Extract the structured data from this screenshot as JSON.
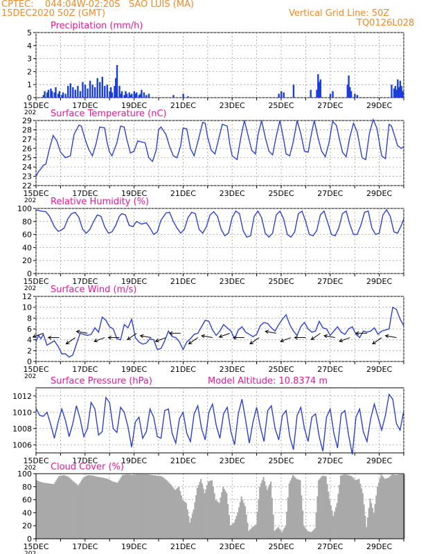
{
  "header": {
    "line1": "CPTEC:    044:04W-02:20S   SAO LUIS (MA)",
    "line2": "15DEC2020 50Z (GMT)",
    "grid_note": "Vertical Grid Line: 50Z",
    "code": "TQ0126L028"
  },
  "colors": {
    "header": "#f08a24",
    "title": "#e8169a",
    "line": "#2b3fd6",
    "bar": "#1a3fd8",
    "cloud": "#a9a9a9",
    "grid": "#9a9a9a"
  },
  "x_axis": {
    "unit": "days since 15DEC",
    "range": [
      0,
      15
    ],
    "tick_labels": [
      "15DEC",
      "17DEC",
      "19DEC",
      "21DEC",
      "23DEC",
      "25DEC",
      "27DEC",
      "29DEC"
    ],
    "tick_positions": [
      0,
      2,
      4,
      6,
      8,
      10,
      12,
      14
    ],
    "year_stub": "202"
  },
  "chart_data": [
    {
      "type": "bar",
      "title": "Precipitation (mm/h)",
      "ylim": [
        0,
        5
      ],
      "yticks": [
        0,
        1,
        2,
        3,
        4,
        5
      ],
      "grid": true,
      "x": [
        0.3,
        0.35,
        0.45,
        0.5,
        0.6,
        0.65,
        0.75,
        0.8,
        0.9,
        0.95,
        1.05,
        1.1,
        1.2,
        1.3,
        1.4,
        1.5,
        1.6,
        1.7,
        1.8,
        1.9,
        2.0,
        2.1,
        2.2,
        2.3,
        2.4,
        2.5,
        2.6,
        2.7,
        2.8,
        2.9,
        3.0,
        3.05,
        3.1,
        3.2,
        3.25,
        3.3,
        3.4,
        3.45,
        3.5,
        3.6,
        3.65,
        3.7,
        3.8,
        3.85,
        3.9,
        4.0,
        4.05,
        4.1,
        4.2,
        4.25,
        4.3,
        4.4,
        4.5,
        4.6,
        5.6,
        6.0,
        6.2,
        9.9,
        10.0,
        10.1,
        10.5,
        11.2,
        11.45,
        11.5,
        11.55,
        11.6,
        12.0,
        12.1,
        12.7,
        12.75,
        12.8,
        12.85,
        13.0,
        13.1,
        14.5,
        14.6,
        14.65,
        14.7,
        14.75,
        14.8,
        14.85,
        14.9,
        14.95
      ],
      "values": [
        0.2,
        0.5,
        0.4,
        0.6,
        0.7,
        0.5,
        0.4,
        0.8,
        0.3,
        0.5,
        0.2,
        0.4,
        0.3,
        0.9,
        1.1,
        0.8,
        0.6,
        0.9,
        0.5,
        1.2,
        1.0,
        0.7,
        1.3,
        1.0,
        0.8,
        1.5,
        1.2,
        1.6,
        0.9,
        1.0,
        0.5,
        0.8,
        0.4,
        0.9,
        1.5,
        2.5,
        0.9,
        0.3,
        0.5,
        0.2,
        0.5,
        0.3,
        0.4,
        0.2,
        0.3,
        0.5,
        0.3,
        0.4,
        0.2,
        0.3,
        0.6,
        0.4,
        0.2,
        0.3,
        0.2,
        0.3,
        0.1,
        0.3,
        0.5,
        0.4,
        1.0,
        0.6,
        0.6,
        1.8,
        1.2,
        1.4,
        0.3,
        0.5,
        1.0,
        1.7,
        0.8,
        0.5,
        0.3,
        0.2,
        1.0,
        0.7,
        0.9,
        0.6,
        1.4,
        0.8,
        1.3,
        0.9,
        0.5
      ]
    },
    {
      "type": "line",
      "title": "Surface Temperature (nC)",
      "ylim": [
        22,
        29
      ],
      "yticks": [
        22,
        23,
        24,
        25,
        26,
        27,
        28,
        29
      ],
      "grid": true,
      "x": [
        0,
        0.1,
        0.2,
        0.3,
        0.4,
        0.55,
        0.7,
        0.85,
        1.0,
        1.2,
        1.4,
        1.55,
        1.75,
        1.85,
        2.0,
        2.15,
        2.3,
        2.45,
        2.6,
        2.8,
        2.9,
        3.0,
        3.1,
        3.3,
        3.45,
        3.6,
        3.7,
        3.85,
        4.0,
        4.15,
        4.3,
        4.45,
        4.6,
        4.75,
        4.9,
        5.0,
        5.1,
        5.3,
        5.45,
        5.6,
        5.75,
        5.9,
        6.0,
        6.15,
        6.3,
        6.45,
        6.6,
        6.8,
        6.9,
        7.0,
        7.15,
        7.3,
        7.45,
        7.6,
        7.8,
        7.9,
        8.0,
        8.2,
        8.35,
        8.5,
        8.65,
        8.8,
        8.95,
        9.05,
        9.2,
        9.35,
        9.5,
        9.65,
        9.8,
        9.95,
        10.1,
        10.2,
        10.35,
        10.5,
        10.65,
        10.8,
        10.95,
        11.1,
        11.25,
        11.35,
        11.5,
        11.65,
        11.8,
        11.95,
        12.1,
        12.25,
        12.35,
        12.5,
        12.65,
        12.8,
        12.95,
        13.1,
        13.3,
        13.45,
        13.6,
        13.75,
        13.9,
        14.1,
        14.25,
        14.4,
        14.5,
        14.6,
        14.75,
        14.9,
        15.0
      ],
      "values": [
        23.0,
        23.5,
        23.8,
        24.2,
        24.3,
        26.0,
        27.4,
        26.8,
        25.6,
        25.0,
        25.2,
        27.5,
        28.5,
        28.4,
        27.0,
        25.9,
        25.2,
        26.5,
        28.3,
        28.2,
        26.6,
        25.6,
        25.2,
        26.6,
        28.4,
        28.3,
        27.0,
        25.5,
        25.7,
        26.8,
        26.7,
        26.6,
        25.0,
        24.6,
        25.8,
        28.0,
        28.3,
        27.5,
        26.2,
        25.2,
        25.0,
        26.3,
        28.2,
        28.1,
        26.0,
        25.2,
        26.7,
        28.8,
        28.7,
        27.2,
        25.8,
        25.4,
        27.0,
        28.6,
        28.4,
        26.5,
        25.2,
        24.8,
        27.1,
        29.0,
        27.4,
        25.8,
        25.4,
        27.4,
        29.0,
        27.2,
        25.7,
        25.3,
        27.3,
        29.0,
        27.0,
        25.4,
        25.2,
        26.8,
        29.0,
        27.6,
        25.7,
        25.6,
        27.8,
        29.0,
        27.2,
        25.7,
        25.1,
        26.6,
        28.9,
        28.5,
        27.3,
        25.6,
        25.1,
        27.2,
        28.7,
        27.8,
        25.0,
        24.8,
        27.6,
        29.1,
        28.2,
        25.2,
        24.9,
        28.6,
        28.4,
        27.6,
        26.3,
        26.0,
        26.2
      ]
    },
    {
      "type": "line",
      "title": "Relative Humidity (%)",
      "ylim": [
        0,
        100
      ],
      "yticks": [
        0,
        20,
        40,
        60,
        80,
        100
      ],
      "grid": true,
      "x": [
        0,
        0.2,
        0.4,
        0.55,
        0.75,
        0.9,
        1.0,
        1.15,
        1.3,
        1.45,
        1.6,
        1.75,
        1.9,
        2.05,
        2.2,
        2.35,
        2.5,
        2.65,
        2.8,
        2.95,
        3.1,
        3.25,
        3.4,
        3.5,
        3.65,
        3.8,
        3.95,
        4.1,
        4.3,
        4.5,
        4.65,
        4.8,
        4.95,
        5.1,
        5.3,
        5.45,
        5.6,
        5.75,
        5.9,
        6.05,
        6.2,
        6.35,
        6.5,
        6.65,
        6.8,
        6.95,
        7.1,
        7.25,
        7.4,
        7.55,
        7.7,
        7.85,
        8.0,
        8.15,
        8.3,
        8.45,
        8.6,
        8.75,
        8.9,
        9.05,
        9.2,
        9.35,
        9.5,
        9.65,
        9.8,
        9.95,
        10.1,
        10.25,
        10.4,
        10.55,
        10.7,
        10.85,
        11.0,
        11.15,
        11.3,
        11.45,
        11.6,
        11.75,
        11.9,
        12.05,
        12.2,
        12.35,
        12.5,
        12.65,
        12.8,
        12.95,
        13.1,
        13.25,
        13.4,
        13.55,
        13.7,
        13.85,
        14.0,
        14.15,
        14.3,
        14.45,
        14.6,
        14.75,
        14.9,
        15.0
      ],
      "values": [
        98,
        96,
        95,
        88,
        72,
        65,
        66,
        70,
        84,
        92,
        94,
        86,
        68,
        62,
        68,
        80,
        90,
        88,
        72,
        62,
        64,
        74,
        88,
        92,
        90,
        74,
        72,
        80,
        76,
        78,
        70,
        60,
        64,
        82,
        93,
        94,
        80,
        70,
        62,
        68,
        86,
        94,
        92,
        68,
        62,
        72,
        90,
        95,
        88,
        68,
        58,
        62,
        86,
        96,
        92,
        66,
        56,
        58,
        88,
        96,
        86,
        62,
        56,
        62,
        90,
        96,
        84,
        60,
        56,
        64,
        92,
        96,
        80,
        60,
        58,
        66,
        90,
        96,
        78,
        60,
        58,
        70,
        92,
        96,
        76,
        60,
        60,
        74,
        94,
        96,
        70,
        60,
        62,
        90,
        98,
        88,
        64,
        62,
        74,
        84
      ]
    },
    {
      "type": "line",
      "title": "Surface Wind (m/s)",
      "ylim": [
        0,
        12
      ],
      "yticks": [
        0,
        2,
        4,
        6,
        8,
        10,
        12
      ],
      "grid": true,
      "x": [
        0,
        0.1,
        0.2,
        0.3,
        0.45,
        0.6,
        0.75,
        0.9,
        1.05,
        1.2,
        1.35,
        1.5,
        1.65,
        1.8,
        1.95,
        2.1,
        2.25,
        2.4,
        2.55,
        2.7,
        2.85,
        3.0,
        3.15,
        3.3,
        3.45,
        3.6,
        3.75,
        3.9,
        4.05,
        4.2,
        4.35,
        4.5,
        4.65,
        4.8,
        4.95,
        5.1,
        5.25,
        5.4,
        5.55,
        5.7,
        5.85,
        6.0,
        6.15,
        6.3,
        6.45,
        6.6,
        6.75,
        6.9,
        7.05,
        7.2,
        7.35,
        7.5,
        7.65,
        7.8,
        7.95,
        8.1,
        8.25,
        8.4,
        8.55,
        8.7,
        8.85,
        9.0,
        9.15,
        9.3,
        9.45,
        9.6,
        9.75,
        9.9,
        10.05,
        10.2,
        10.35,
        10.5,
        10.65,
        10.8,
        10.95,
        11.1,
        11.25,
        11.4,
        11.55,
        11.7,
        11.85,
        12.0,
        12.15,
        12.3,
        12.45,
        12.6,
        12.75,
        12.9,
        13.05,
        13.2,
        13.35,
        13.5,
        13.65,
        13.8,
        13.95,
        14.1,
        14.25,
        14.4,
        14.55,
        14.7,
        14.85,
        15.0
      ],
      "values": [
        3.6,
        4.8,
        4.2,
        5.0,
        3.0,
        3.4,
        3.8,
        2.8,
        1.4,
        1.4,
        0.8,
        1.2,
        3.2,
        5.2,
        5.0,
        4.8,
        5.0,
        6.2,
        5.4,
        8.2,
        7.6,
        6.4,
        6.0,
        4.2,
        4.0,
        6.8,
        6.2,
        7.8,
        4.4,
        3.6,
        3.2,
        3.4,
        4.2,
        4.0,
        2.2,
        2.4,
        3.8,
        5.6,
        4.6,
        4.4,
        3.6,
        2.2,
        3.6,
        4.2,
        5.0,
        5.2,
        6.4,
        7.6,
        7.4,
        5.8,
        4.8,
        5.6,
        6.8,
        6.2,
        5.6,
        4.2,
        5.8,
        6.4,
        5.4,
        5.0,
        4.6,
        5.0,
        6.6,
        7.2,
        7.0,
        6.2,
        5.6,
        6.8,
        7.8,
        8.6,
        6.8,
        5.6,
        4.8,
        6.4,
        7.2,
        6.0,
        5.4,
        5.6,
        7.4,
        6.2,
        6.0,
        4.8,
        5.6,
        6.4,
        5.4,
        5.0,
        6.0,
        6.4,
        5.0,
        4.4,
        5.6,
        5.4,
        5.6,
        6.2,
        5.0,
        5.6,
        5.8,
        6.0,
        10.0,
        9.6,
        7.8,
        6.6
      ]
    },
    {
      "type": "line",
      "title": "Surface Pressure (hPa)",
      "annotation": "Model Altitude: 10.8374 m",
      "ylim": [
        1005,
        1013
      ],
      "yticks": [
        1006,
        1008,
        1010,
        1012
      ],
      "grid": true,
      "x": [
        0,
        0.15,
        0.3,
        0.45,
        0.6,
        0.75,
        0.9,
        1.05,
        1.2,
        1.35,
        1.5,
        1.65,
        1.8,
        1.95,
        2.1,
        2.25,
        2.4,
        2.55,
        2.7,
        2.85,
        3.0,
        3.15,
        3.3,
        3.45,
        3.6,
        3.75,
        3.9,
        4.05,
        4.2,
        4.35,
        4.5,
        4.65,
        4.8,
        4.95,
        5.1,
        5.25,
        5.4,
        5.55,
        5.7,
        5.85,
        6.0,
        6.15,
        6.3,
        6.45,
        6.6,
        6.75,
        6.9,
        7.05,
        7.2,
        7.35,
        7.5,
        7.65,
        7.8,
        7.95,
        8.1,
        8.25,
        8.4,
        8.55,
        8.7,
        8.85,
        9.0,
        9.15,
        9.3,
        9.45,
        9.6,
        9.75,
        9.9,
        10.05,
        10.2,
        10.35,
        10.5,
        10.65,
        10.8,
        10.95,
        11.1,
        11.25,
        11.4,
        11.55,
        11.7,
        11.85,
        12.0,
        12.15,
        12.3,
        12.45,
        12.6,
        12.75,
        12.9,
        13.05,
        13.2,
        13.35,
        13.5,
        13.65,
        13.8,
        13.95,
        14.1,
        14.25,
        14.4,
        14.55,
        14.7,
        14.85,
        15.0
      ],
      "values": [
        1010.5,
        1009.6,
        1009.5,
        1010.0,
        1008.5,
        1006.8,
        1008.8,
        1010.4,
        1009.0,
        1007.0,
        1008.6,
        1010.8,
        1009.2,
        1007.0,
        1008.0,
        1011.2,
        1010.4,
        1007.2,
        1007.6,
        1011.8,
        1011.2,
        1008.0,
        1007.5,
        1010.6,
        1010.0,
        1008.2,
        1005.7,
        1008.8,
        1009.4,
        1006.8,
        1007.6,
        1010.4,
        1009.4,
        1007.0,
        1006.8,
        1010.2,
        1010.4,
        1007.4,
        1006.2,
        1009.2,
        1010.0,
        1007.4,
        1006.4,
        1009.8,
        1010.8,
        1008.0,
        1006.6,
        1010.0,
        1011.0,
        1008.4,
        1006.8,
        1009.8,
        1010.6,
        1007.6,
        1006.0,
        1009.8,
        1011.6,
        1009.0,
        1006.2,
        1008.8,
        1010.6,
        1008.2,
        1006.4,
        1010.2,
        1010.8,
        1008.0,
        1006.6,
        1009.6,
        1010.2,
        1007.0,
        1005.4,
        1009.6,
        1010.6,
        1008.0,
        1006.4,
        1009.4,
        1009.8,
        1007.0,
        1005.2,
        1009.4,
        1010.4,
        1007.4,
        1005.6,
        1009.8,
        1010.2,
        1007.2,
        1004.8,
        1009.4,
        1010.4,
        1007.6,
        1006.4,
        1009.2,
        1011.0,
        1009.4,
        1007.8,
        1009.6,
        1012.2,
        1011.6,
        1008.6,
        1007.8,
        1010.2
      ]
    },
    {
      "type": "area",
      "title": "Cloud Cover (%)",
      "ylim": [
        0,
        100
      ],
      "yticks": [
        0,
        20,
        40,
        60,
        80,
        100
      ],
      "grid": true,
      "x": [
        0,
        0.1,
        0.3,
        0.5,
        0.7,
        0.9,
        1.1,
        1.3,
        1.5,
        1.7,
        1.9,
        2.1,
        2.3,
        2.5,
        2.7,
        2.9,
        3.1,
        3.3,
        3.5,
        3.7,
        3.9,
        4.1,
        4.3,
        4.5,
        4.7,
        4.9,
        5.1,
        5.3,
        5.5,
        5.65,
        5.8,
        5.95,
        6.1,
        6.25,
        6.4,
        6.55,
        6.7,
        6.85,
        7.0,
        7.15,
        7.3,
        7.45,
        7.6,
        7.75,
        7.9,
        8.05,
        8.2,
        8.35,
        8.5,
        8.65,
        8.8,
        8.95,
        9.1,
        9.25,
        9.4,
        9.55,
        9.7,
        9.85,
        10.0,
        10.15,
        10.3,
        10.45,
        10.6,
        10.75,
        10.9,
        11.05,
        11.2,
        11.35,
        11.5,
        11.65,
        11.8,
        11.95,
        12.1,
        12.25,
        12.4,
        12.55,
        12.7,
        12.85,
        13.0,
        13.15,
        13.3,
        13.45,
        13.6,
        13.75,
        13.9,
        14.05,
        14.2,
        14.35,
        14.5,
        14.65,
        14.8,
        14.95
      ],
      "values": [
        90,
        88,
        86,
        85,
        84,
        96,
        98,
        95,
        88,
        82,
        94,
        98,
        97,
        95,
        94,
        92,
        88,
        86,
        98,
        99,
        98,
        99,
        99,
        99,
        98,
        97,
        96,
        90,
        82,
        75,
        80,
        60,
        55,
        25,
        45,
        78,
        92,
        70,
        88,
        90,
        60,
        55,
        80,
        70,
        20,
        25,
        40,
        65,
        50,
        12,
        18,
        22,
        80,
        95,
        75,
        88,
        12,
        18,
        10,
        20,
        85,
        98,
        92,
        90,
        20,
        12,
        10,
        16,
        90,
        97,
        96,
        60,
        35,
        55,
        97,
        99,
        98,
        96,
        90,
        92,
        70,
        18,
        62,
        40,
        80,
        99,
        92,
        94,
        99,
        98,
        99,
        99
      ]
    }
  ]
}
